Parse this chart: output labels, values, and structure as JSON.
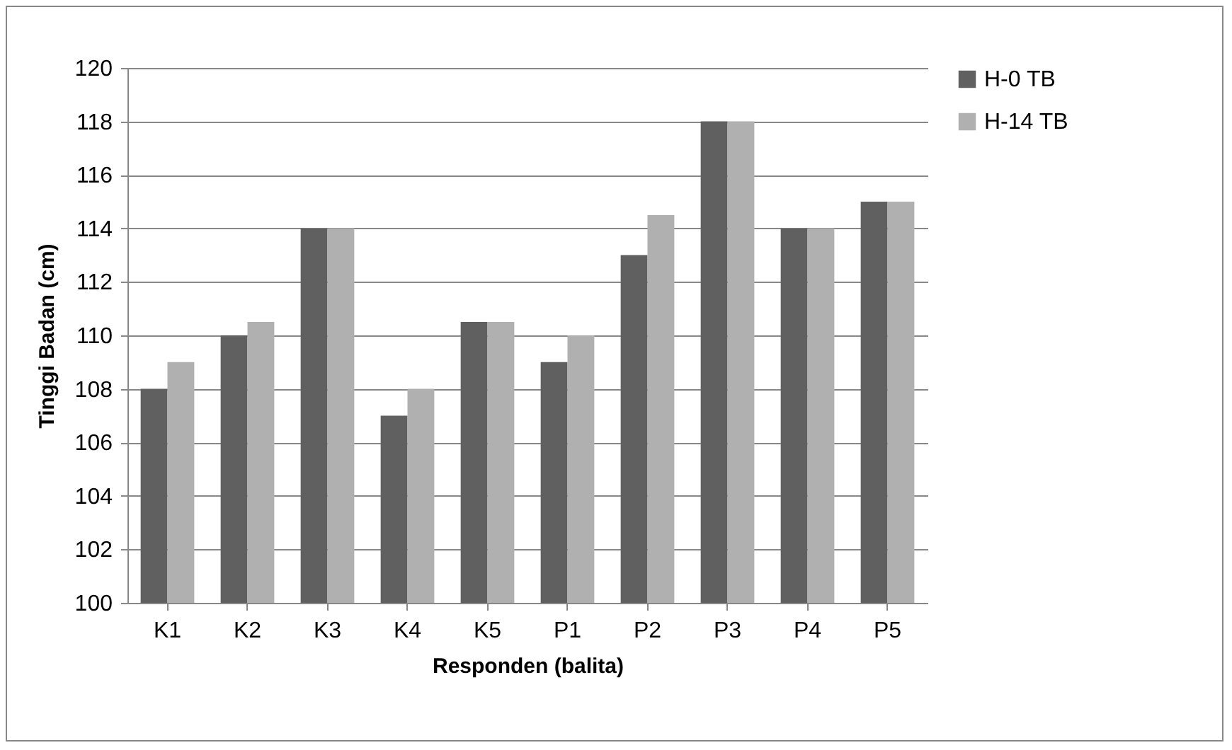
{
  "chart_data": {
    "type": "bar",
    "xlabel": "Responden (balita)",
    "ylabel": "Tinggi Badan (cm)",
    "categories": [
      "K1",
      "K2",
      "K3",
      "K4",
      "K5",
      "P1",
      "P2",
      "P3",
      "P4",
      "P5"
    ],
    "series": [
      {
        "name": "H-0 TB",
        "color": "#606060",
        "values": [
          108,
          110,
          114,
          107,
          110.5,
          109,
          113,
          118,
          114,
          115
        ]
      },
      {
        "name": "H-14 TB",
        "color": "#b0b0b0",
        "values": [
          109,
          110.5,
          114,
          108,
          110.5,
          110,
          114.5,
          118,
          114,
          115
        ]
      }
    ],
    "ylim": [
      100,
      120
    ],
    "yticks": [
      100,
      102,
      104,
      106,
      108,
      110,
      112,
      114,
      116,
      118,
      120
    ],
    "grid": "y",
    "legend": "right"
  }
}
